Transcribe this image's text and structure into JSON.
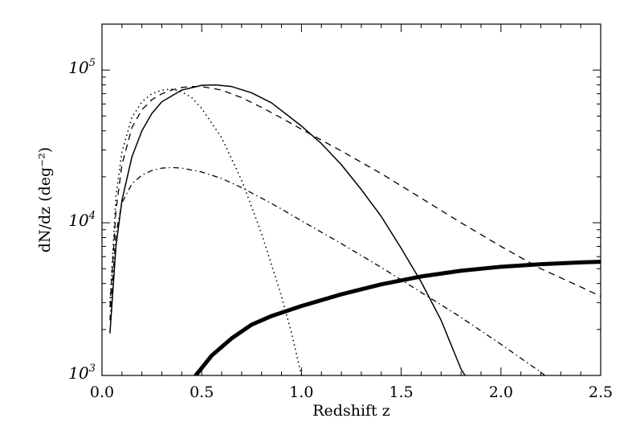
{
  "chart_data": {
    "type": "line",
    "title": "",
    "xlabel": "Redshift z",
    "ylabel": "dN/dz (deg⁻²)",
    "xlim": [
      0,
      2.5
    ],
    "ylim": [
      1000,
      200000
    ],
    "yscale": "log",
    "grid": false,
    "legend": "none",
    "x_tick_labels": [
      "0.0",
      "0.5",
      "1.0",
      "1.5",
      "2.0",
      "2.5"
    ],
    "x_tick_values": [
      0,
      0.5,
      1.0,
      1.5,
      2.0,
      2.5
    ],
    "y_tick_labels": [
      {
        "base": "10",
        "exp": "3",
        "value": 1000
      },
      {
        "base": "10",
        "exp": "4",
        "value": 10000
      },
      {
        "base": "10",
        "exp": "5",
        "value": 100000
      }
    ],
    "series": [
      {
        "style": "solid",
        "x": [
          0.04,
          0.07,
          0.1,
          0.15,
          0.2,
          0.25,
          0.3,
          0.4,
          0.5,
          0.57,
          0.65,
          0.75,
          0.85,
          1.0,
          1.1,
          1.2,
          1.3,
          1.4,
          1.5,
          1.6,
          1.7,
          1.8,
          1.82
        ],
        "y": [
          1900,
          7000,
          14000,
          27000,
          40000,
          52000,
          62000,
          74000,
          79500,
          80000,
          78000,
          71000,
          61000,
          43000,
          33000,
          24000,
          16500,
          11000,
          6800,
          4100,
          2300,
          1100,
          1000
        ]
      },
      {
        "style": "dashed",
        "x": [
          0.04,
          0.07,
          0.1,
          0.15,
          0.2,
          0.25,
          0.3,
          0.35,
          0.4,
          0.45,
          0.5,
          0.6,
          0.7,
          0.8,
          0.9,
          1.0,
          1.2,
          1.4,
          1.6,
          1.8,
          2.0,
          2.2,
          2.4,
          2.5
        ],
        "y": [
          2800,
          12000,
          24000,
          42000,
          55000,
          64000,
          70000,
          74000,
          77000,
          78000,
          78000,
          74000,
          66000,
          57000,
          48500,
          41000,
          29500,
          21000,
          14500,
          10000,
          7000,
          5000,
          3800,
          3300
        ]
      },
      {
        "style": "dotted",
        "x": [
          0.04,
          0.07,
          0.1,
          0.15,
          0.2,
          0.25,
          0.3,
          0.35,
          0.4,
          0.45,
          0.5,
          0.6,
          0.7,
          0.8,
          0.9,
          0.95,
          1.0
        ],
        "y": [
          3000,
          15000,
          29000,
          49000,
          62000,
          70000,
          74000,
          75000,
          72000,
          66000,
          56000,
          36000,
          19000,
          8500,
          3300,
          1900,
          1000
        ]
      },
      {
        "style": "dash-dot",
        "x": [
          0.04,
          0.07,
          0.1,
          0.15,
          0.2,
          0.25,
          0.3,
          0.35,
          0.4,
          0.5,
          0.6,
          0.7,
          0.8,
          0.9,
          1.0,
          1.2,
          1.4,
          1.6,
          1.8,
          2.0,
          2.2,
          2.22
        ],
        "y": [
          2300,
          8500,
          13500,
          18000,
          20500,
          22000,
          22800,
          23000,
          22800,
          21500,
          19500,
          17000,
          14500,
          12300,
          10300,
          7300,
          5100,
          3500,
          2400,
          1600,
          1050,
          1000
        ]
      },
      {
        "style": "thick-solid",
        "x": [
          0.47,
          0.55,
          0.65,
          0.75,
          0.85,
          1.0,
          1.2,
          1.4,
          1.6,
          1.8,
          2.0,
          2.2,
          2.4,
          2.5
        ],
        "y": [
          1000,
          1350,
          1750,
          2150,
          2450,
          2850,
          3400,
          3950,
          4450,
          4850,
          5150,
          5350,
          5500,
          5550
        ]
      }
    ]
  }
}
